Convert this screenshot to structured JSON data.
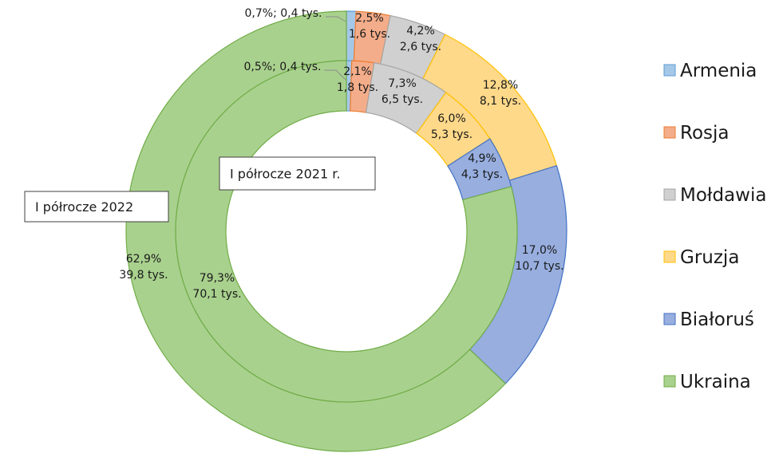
{
  "chart_data": {
    "type": "pie",
    "subtype": "double-donut",
    "categories": [
      "Armenia",
      "Rosja",
      "Mołdawia",
      "Gruzja",
      "Białoruś",
      "Ukraina"
    ],
    "colors": {
      "Armenia": {
        "fill": "#a6c8e8",
        "stroke": "#5b9bd5"
      },
      "Rosja": {
        "fill": "#f4ad8a",
        "stroke": "#ed7d31"
      },
      "Mołdawia": {
        "fill": "#d0d0d0",
        "stroke": "#a5a5a5"
      },
      "Gruzja": {
        "fill": "#ffd98a",
        "stroke": "#ffc000"
      },
      "Białoruś": {
        "fill": "#97aedf",
        "stroke": "#4472c4"
      },
      "Ukraina": {
        "fill": "#a9d18e",
        "stroke": "#70ad47"
      }
    },
    "series": [
      {
        "name": "I półrocze 2022",
        "ring": "outer",
        "values": [
          0.7,
          2.5,
          4.2,
          12.8,
          17.0,
          62.9
        ],
        "data_labels": [
          [
            "0,7%; 0,4 tys."
          ],
          [
            "2,5%",
            "1,6 tys."
          ],
          [
            "4,2%",
            "2,6 tys."
          ],
          [
            "12,8%",
            "8,1 tys."
          ],
          [
            "17,0%",
            "10,7 tys."
          ],
          [
            "62,9%",
            "39,8 tys."
          ]
        ]
      },
      {
        "name": "I półrocze 2021 r.",
        "ring": "inner",
        "values": [
          0.5,
          2.1,
          7.3,
          6.0,
          4.9,
          79.3
        ],
        "data_labels": [
          [
            "0,5%; 0,4 tys."
          ],
          [
            "2,1%",
            "1,8 tys."
          ],
          [
            "7,3%",
            "6,5 tys."
          ],
          [
            "6,0%",
            "5,3 tys."
          ],
          [
            "4,9%",
            "4,3 tys."
          ],
          [
            "79,3%",
            "70,1 tys."
          ]
        ]
      }
    ],
    "legend": "right"
  }
}
